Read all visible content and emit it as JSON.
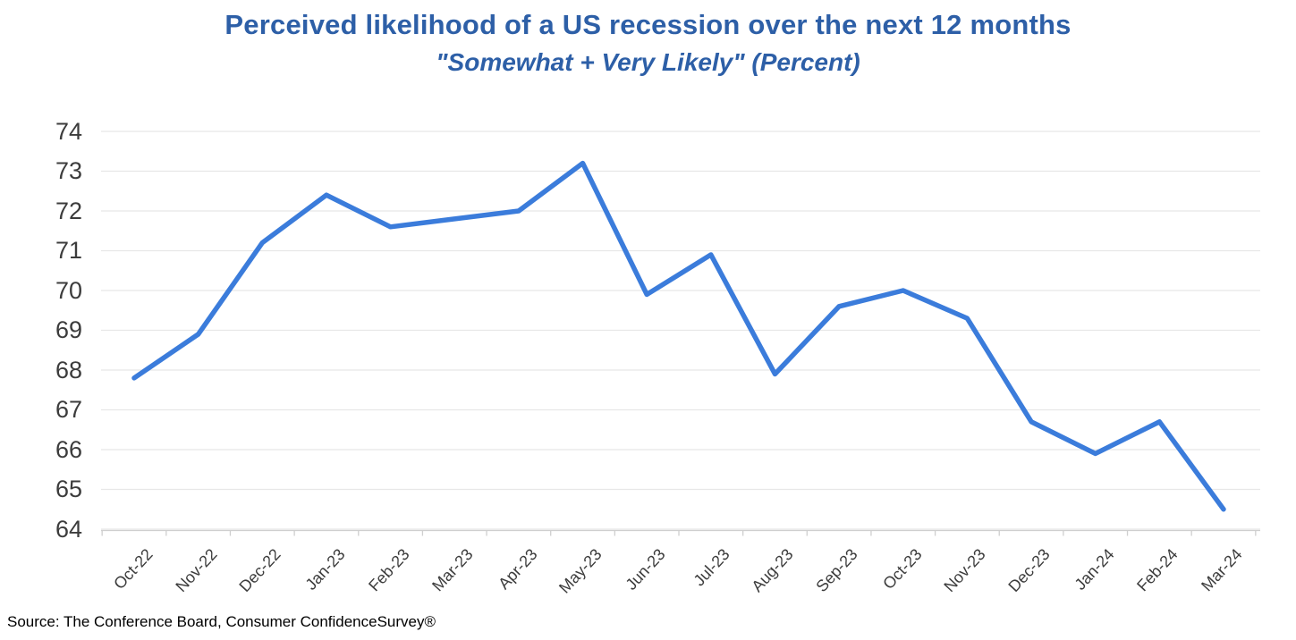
{
  "chart_data": {
    "type": "line",
    "title": "Perceived likelihood of a US recession over the next 12 months",
    "subtitle": "\"Somewhat + Very Likely\" (Percent)",
    "series_name": "Somewhat + Very Likely (Percent)",
    "categories": [
      "Oct-22",
      "Nov-22",
      "Dec-22",
      "Jan-23",
      "Feb-23",
      "Mar-23",
      "Apr-23",
      "May-23",
      "Jun-23",
      "Jul-23",
      "Aug-23",
      "Sep-23",
      "Oct-23",
      "Nov-23",
      "Dec-23",
      "Jan-24",
      "Feb-24",
      "Mar-24"
    ],
    "values": [
      67.8,
      68.9,
      71.2,
      72.4,
      71.6,
      71.8,
      72.0,
      73.2,
      69.9,
      70.9,
      67.9,
      69.6,
      70.0,
      69.3,
      66.7,
      65.9,
      66.7,
      64.5
    ],
    "xlabel": "",
    "ylabel": "",
    "ylim": [
      64,
      74
    ],
    "ytick_step": 1,
    "grid": true,
    "legend": false,
    "source": "Source: The Conference Board, Consumer ConfidenceSurvey®",
    "colors": {
      "title": "#2d5fa7",
      "line": "#3b7cdb",
      "gridline": "#e7e7e7",
      "axis": "#cfcfcf",
      "tick_label": "#3c3c3c"
    }
  }
}
